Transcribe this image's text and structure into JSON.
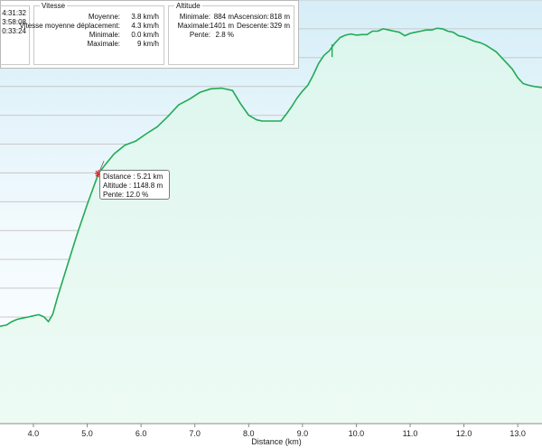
{
  "chart_data": {
    "type": "area",
    "xlabel": "Distance  (km)",
    "ylabel": "",
    "xlim": [
      3.38,
      13.45
    ],
    "ylim": [
      715,
      1450
    ],
    "x_ticks": [
      "4.0",
      "5.0",
      "6.0",
      "7.0",
      "8.0",
      "9.0",
      "10.0",
      "11.0",
      "12.0",
      "13.0"
    ],
    "grid": true,
    "colors": {
      "line": "#22aa55",
      "fill_top": "#d6eef8",
      "fill_bottom": "#eafaf2",
      "grid": "#c8c8c8"
    },
    "x": [
      3.38,
      3.5,
      3.6,
      3.7,
      3.8,
      3.9,
      4.0,
      4.1,
      4.2,
      4.28,
      4.36,
      4.45,
      4.6,
      4.8,
      5.0,
      5.21,
      5.35,
      5.5,
      5.7,
      5.9,
      6.1,
      6.3,
      6.5,
      6.7,
      6.9,
      7.1,
      7.3,
      7.5,
      7.7,
      7.85,
      8.0,
      8.15,
      8.25,
      8.35,
      8.5,
      8.6,
      8.7,
      8.8,
      8.9,
      9.0,
      9.1,
      9.2,
      9.3,
      9.4,
      9.5,
      9.6,
      9.7,
      9.8,
      9.9,
      10.0,
      10.1,
      10.2,
      10.3,
      10.4,
      10.5,
      10.6,
      10.7,
      10.8,
      10.9,
      11.0,
      11.1,
      11.2,
      11.3,
      11.4,
      11.5,
      11.6,
      11.7,
      11.8,
      11.9,
      12.0,
      12.1,
      12.2,
      12.3,
      12.4,
      12.5,
      12.6,
      12.7,
      12.8,
      12.9,
      13.0,
      13.1,
      13.2,
      13.3,
      13.45
    ],
    "values": [
      884,
      886,
      892,
      896,
      898,
      900,
      902,
      904,
      900,
      892,
      905,
      935,
      980,
      1040,
      1095,
      1148.8,
      1166,
      1183,
      1198,
      1205,
      1218,
      1230,
      1248,
      1268,
      1278,
      1290,
      1296,
      1297,
      1293,
      1270,
      1250,
      1242,
      1240,
      1240,
      1240,
      1240,
      1252,
      1265,
      1280,
      1292,
      1302,
      1320,
      1340,
      1354,
      1362,
      1375,
      1385,
      1389,
      1391,
      1389,
      1390,
      1390,
      1396,
      1396,
      1400,
      1398,
      1396,
      1394,
      1388,
      1392,
      1394,
      1396,
      1398,
      1398,
      1401,
      1400,
      1396,
      1394,
      1388,
      1386,
      1382,
      1378,
      1376,
      1372,
      1366,
      1360,
      1350,
      1340,
      1330,
      1315,
      1305,
      1302,
      1300,
      1298
    ],
    "markers": [
      {
        "x": 5.21,
        "y": 1148.8,
        "shape": "star",
        "color": "#e0201f"
      },
      {
        "x": 9.55,
        "y": 1362,
        "shape": "tick",
        "color": "#22aa55"
      }
    ]
  },
  "stats": {
    "time": {
      "values": [
        "4:31:32",
        "3:58:08",
        "0:33:24"
      ]
    },
    "speed": {
      "title": "Vitesse",
      "rows": [
        {
          "label": "Moyenne:",
          "value": "3.8 km/h"
        },
        {
          "label": "Vitesse moyenne déplacement:",
          "value": "4.3 km/h"
        },
        {
          "label": "Minimale:",
          "value": "0.0 km/h"
        },
        {
          "label": "Maximale:",
          "value": "9 km/h"
        }
      ]
    },
    "altitude": {
      "title": "Altitude",
      "min_label": "Minimale:",
      "min_value": "884 m",
      "asc_label": "Ascension:",
      "asc_value": "818 m",
      "max_label": "Maximale:",
      "max_value": "1401 m",
      "desc_label": "Descente:",
      "desc_value": "329 m",
      "slope_label": "Pente:",
      "slope_value": "2.8 %"
    }
  },
  "tooltip": {
    "distance": "Distance : 5.21 km",
    "altitude": "Altitude : 1148.8 m",
    "slope": "Pente: 12.0 %"
  }
}
